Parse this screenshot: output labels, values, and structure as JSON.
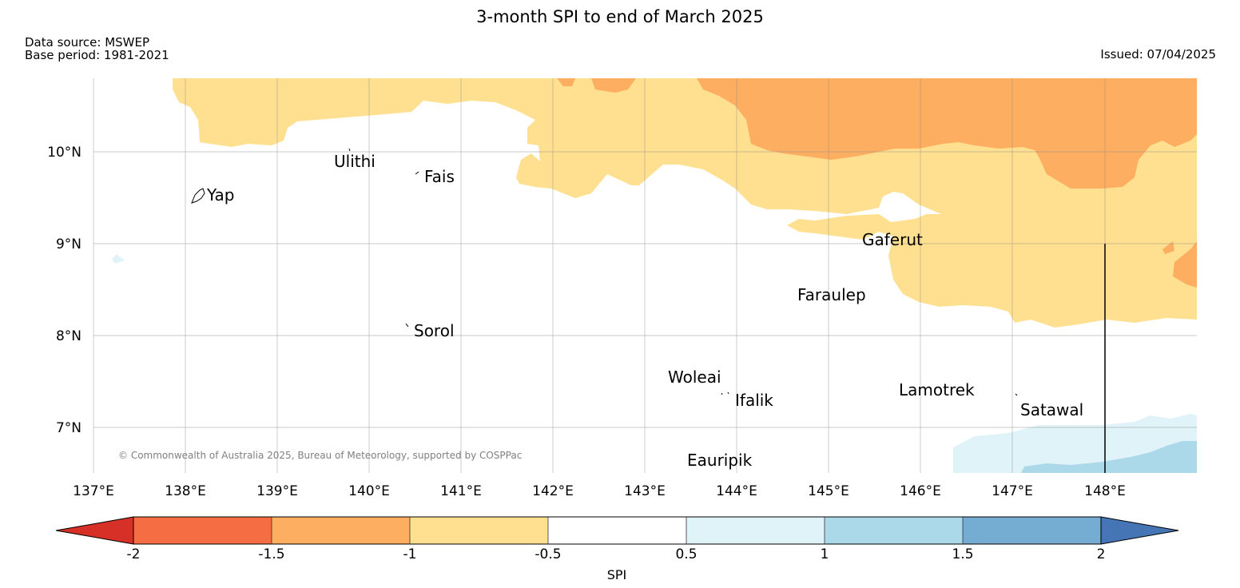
{
  "header": {
    "title": "3-month SPI to end of March 2025",
    "source": "Data source: MSWEP",
    "base_period": "Base period: 1981-2021",
    "issued": "Issued: 07/04/2025"
  },
  "map": {
    "lon_range": [
      137,
      149
    ],
    "lat_range": [
      6.5,
      10.8
    ],
    "lon_ticks": [
      "137°E",
      "138°E",
      "139°E",
      "140°E",
      "141°E",
      "142°E",
      "143°E",
      "144°E",
      "145°E",
      "146°E",
      "147°E",
      "148°E"
    ],
    "lat_ticks": [
      "10°N",
      "9°N",
      "8°N",
      "7°N"
    ],
    "places": [
      {
        "name": "Yap",
        "lon": 138.1,
        "lat": 9.5
      },
      {
        "name": "Ulithi",
        "lon": 139.7,
        "lat": 10.0
      },
      {
        "name": "Fais",
        "lon": 140.5,
        "lat": 9.75
      },
      {
        "name": "Gaferut",
        "lon": 145.4,
        "lat": 9.2
      },
      {
        "name": "Faraulep",
        "lon": 144.6,
        "lat": 8.6
      },
      {
        "name": "Sorol",
        "lon": 140.4,
        "lat": 8.1
      },
      {
        "name": "Woleai",
        "lon": 143.7,
        "lat": 7.4
      },
      {
        "name": "Ifalik",
        "lon": 144.0,
        "lat": 7.3
      },
      {
        "name": "Lamotrek",
        "lon": 145.9,
        "lat": 7.5
      },
      {
        "name": "Satawal",
        "lon": 147.0,
        "lat": 7.35
      },
      {
        "name": "Eauripik",
        "lon": 143.4,
        "lat": 6.7
      }
    ],
    "copyright": "© Commonwealth of Australia 2025, Bureau of Meteorology, supported by COSPPac"
  },
  "colorbar": {
    "label": "SPI",
    "tick_labels": [
      "-2",
      "-1.5",
      "-1",
      "-0.5",
      "0.5",
      "1",
      "1.5",
      "2"
    ],
    "colors": [
      "#d73027",
      "#f46d43",
      "#fdae61",
      "#fee090",
      "#ffffff",
      "#e0f3f8",
      "#abd9e9",
      "#74add1",
      "#4575b4"
    ]
  }
}
